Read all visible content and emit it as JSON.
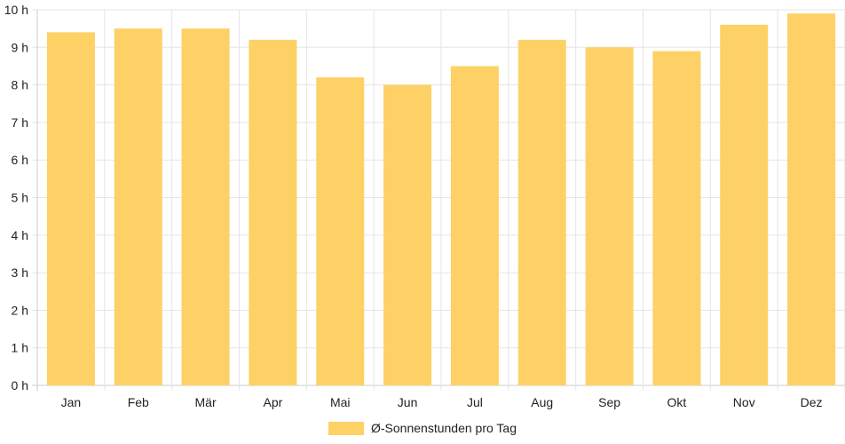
{
  "chart_data": {
    "type": "bar",
    "categories": [
      "Jan",
      "Feb",
      "Mär",
      "Apr",
      "Mai",
      "Jun",
      "Jul",
      "Aug",
      "Sep",
      "Okt",
      "Nov",
      "Dez"
    ],
    "series": [
      {
        "name": "Ø-Sonnenstunden pro Tag",
        "values": [
          9.4,
          9.5,
          9.5,
          9.2,
          8.2,
          8.0,
          8.5,
          9.2,
          9.0,
          8.9,
          9.6,
          9.9
        ]
      }
    ],
    "y_tick_labels": [
      "0 h",
      "1 h",
      "2 h",
      "3 h",
      "4 h",
      "5 h",
      "6 h",
      "7 h",
      "8 h",
      "9 h",
      "10 h"
    ],
    "ylim": [
      0,
      10
    ],
    "grid": true,
    "legend_position": "bottom-center",
    "colors": {
      "bar": "#fdd166",
      "grid": "#e5e5e5",
      "axis": "#cccccc"
    }
  }
}
